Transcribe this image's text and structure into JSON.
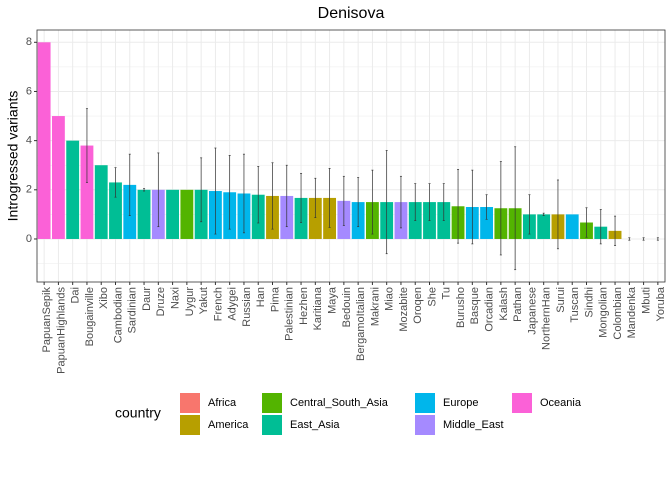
{
  "chart_data": {
    "type": "bar",
    "title": "Denisova",
    "y_label": "Introgressed variants",
    "categories": [
      "PapuanSepik",
      "PapuanHighlands",
      "Dai",
      "Bougainville",
      "Xibo",
      "Cambodian",
      "Sardinian",
      "Daur",
      "Druze",
      "Naxi",
      "Uygur",
      "Yakut",
      "French",
      "Adygei",
      "Russian",
      "Han",
      "Pima",
      "Palestinian",
      "Hezhen",
      "Karitiana",
      "Maya",
      "Bedouin",
      "BergamoItalian",
      "Makrani",
      "Miao",
      "Mozabite",
      "Oroqen",
      "She",
      "Tu",
      "Burusho",
      "Basque",
      "Orcadian",
      "Kalash",
      "Pathan",
      "Japanese",
      "NorthernHan",
      "Surui",
      "Tuscan",
      "Sindhi",
      "Mongolian",
      "Colombian",
      "Mandenka",
      "Mbuti",
      "Yoruba"
    ],
    "values": [
      8,
      5,
      4,
      3.8,
      3,
      2.3,
      2.2,
      2,
      2,
      2,
      2,
      2,
      1.95,
      1.9,
      1.85,
      1.8,
      1.75,
      1.75,
      1.67,
      1.67,
      1.67,
      1.55,
      1.5,
      1.5,
      1.5,
      1.5,
      1.5,
      1.5,
      1.5,
      1.33,
      1.3,
      1.3,
      1.25,
      1.25,
      1,
      1,
      1,
      1,
      0.67,
      0.5,
      0.33,
      0,
      0,
      0
    ],
    "errors": [
      null,
      null,
      null,
      1.5,
      null,
      0.6,
      1.25,
      0.05,
      1.5,
      null,
      null,
      1.3,
      1.75,
      1.5,
      1.6,
      1.15,
      1.35,
      1.25,
      1.0,
      0.8,
      1.2,
      1.0,
      1.0,
      1.3,
      2.1,
      1.05,
      0.75,
      0.75,
      0.75,
      1.5,
      1.5,
      0.5,
      1.9,
      2.5,
      0.8,
      0.05,
      1.4,
      null,
      0.6,
      0.7,
      0.6,
      0.05,
      0.05,
      0.05
    ],
    "country": [
      "Oceania",
      "Oceania",
      "East_Asia",
      "Oceania",
      "East_Asia",
      "East_Asia",
      "Europe",
      "East_Asia",
      "Middle_East",
      "East_Asia",
      "Central_South_Asia",
      "East_Asia",
      "Europe",
      "Europe",
      "Europe",
      "East_Asia",
      "America",
      "Middle_East",
      "East_Asia",
      "America",
      "America",
      "Middle_East",
      "Europe",
      "Central_South_Asia",
      "East_Asia",
      "Middle_East",
      "East_Asia",
      "East_Asia",
      "East_Asia",
      "Central_South_Asia",
      "Europe",
      "Europe",
      "Central_South_Asia",
      "Central_South_Asia",
      "East_Asia",
      "East_Asia",
      "America",
      "Europe",
      "Central_South_Asia",
      "East_Asia",
      "America",
      "Africa",
      "Africa",
      "Africa"
    ],
    "legend": {
      "title": "country",
      "items": [
        {
          "name": "Africa",
          "color": "#F8766D"
        },
        {
          "name": "America",
          "color": "#B79F00"
        },
        {
          "name": "Central_South_Asia",
          "color": "#53B400"
        },
        {
          "name": "East_Asia",
          "color": "#00BE95"
        },
        {
          "name": "Europe",
          "color": "#00B6EB"
        },
        {
          "name": "Middle_East",
          "color": "#A58AFF"
        },
        {
          "name": "Oceania",
          "color": "#FB61D7"
        }
      ]
    },
    "ylim": [
      -1.75,
      8.5
    ],
    "yticks": [
      0,
      2,
      4,
      6,
      8
    ],
    "grid": true
  }
}
